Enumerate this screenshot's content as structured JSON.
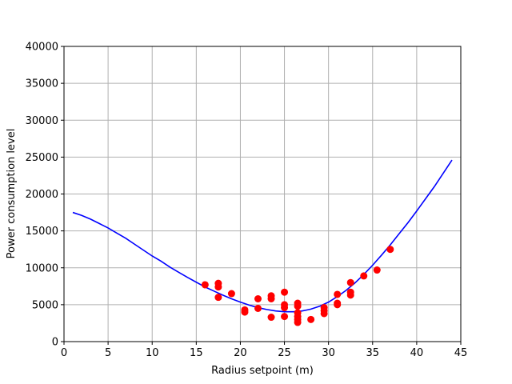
{
  "chart_data": {
    "type": "scatter",
    "title": "",
    "xlabel": "Radius setpoint (m)",
    "ylabel": "Power consumption level",
    "xlim": [
      0,
      45
    ],
    "ylim": [
      0,
      40000
    ],
    "xticks": [
      0,
      5,
      10,
      15,
      20,
      25,
      30,
      35,
      40,
      45
    ],
    "yticks": [
      0,
      5000,
      10000,
      15000,
      20000,
      25000,
      30000,
      35000,
      40000
    ],
    "grid": true,
    "legend": "none",
    "series": [
      {
        "kind": "scatter",
        "color": "#ff0000",
        "points": [
          [
            16,
            7700
          ],
          [
            17.5,
            7900
          ],
          [
            17.5,
            7400
          ],
          [
            17.5,
            6000
          ],
          [
            19,
            6500
          ],
          [
            20.5,
            4300
          ],
          [
            20.5,
            4000
          ],
          [
            22,
            5800
          ],
          [
            22,
            4500
          ],
          [
            23.5,
            6200
          ],
          [
            23.5,
            5800
          ],
          [
            23.5,
            3300
          ],
          [
            25,
            6700
          ],
          [
            25,
            5000
          ],
          [
            25,
            4600
          ],
          [
            25,
            3400
          ],
          [
            26.5,
            5200
          ],
          [
            26.5,
            4800
          ],
          [
            26.5,
            3900
          ],
          [
            26.5,
            3400
          ],
          [
            26.5,
            3000
          ],
          [
            26.5,
            2600
          ],
          [
            28,
            3000
          ],
          [
            29.5,
            4600
          ],
          [
            29.5,
            4200
          ],
          [
            29.5,
            3800
          ],
          [
            31,
            6400
          ],
          [
            31,
            5200
          ],
          [
            31,
            5000
          ],
          [
            32.5,
            8000
          ],
          [
            32.5,
            6700
          ],
          [
            32.5,
            6300
          ],
          [
            34,
            8900
          ],
          [
            35.5,
            9700
          ],
          [
            37,
            12500
          ]
        ]
      },
      {
        "kind": "line",
        "color": "#0000ff",
        "points": [
          [
            1,
            17500
          ],
          [
            2,
            17100
          ],
          [
            3,
            16600
          ],
          [
            4,
            16000
          ],
          [
            5,
            15400
          ],
          [
            6,
            14700
          ],
          [
            7,
            14000
          ],
          [
            8,
            13200
          ],
          [
            9,
            12400
          ],
          [
            10,
            11600
          ],
          [
            11,
            10900
          ],
          [
            12,
            10100
          ],
          [
            13,
            9400
          ],
          [
            14,
            8700
          ],
          [
            15,
            8050
          ],
          [
            16,
            7400
          ],
          [
            17,
            6850
          ],
          [
            18,
            6300
          ],
          [
            19,
            5800
          ],
          [
            20,
            5350
          ],
          [
            21,
            4950
          ],
          [
            22,
            4600
          ],
          [
            23,
            4350
          ],
          [
            24,
            4150
          ],
          [
            25,
            4050
          ],
          [
            26,
            4050
          ],
          [
            27,
            4150
          ],
          [
            28,
            4400
          ],
          [
            29,
            4800
          ],
          [
            30,
            5350
          ],
          [
            31,
            6100
          ],
          [
            32,
            6950
          ],
          [
            33,
            7950
          ],
          [
            34,
            9100
          ],
          [
            35,
            10350
          ],
          [
            36,
            11700
          ],
          [
            37,
            13100
          ],
          [
            38,
            14600
          ],
          [
            39,
            16100
          ],
          [
            40,
            17700
          ],
          [
            41,
            19350
          ],
          [
            42,
            21000
          ],
          [
            43,
            22800
          ],
          [
            44,
            24600
          ]
        ]
      }
    ]
  }
}
